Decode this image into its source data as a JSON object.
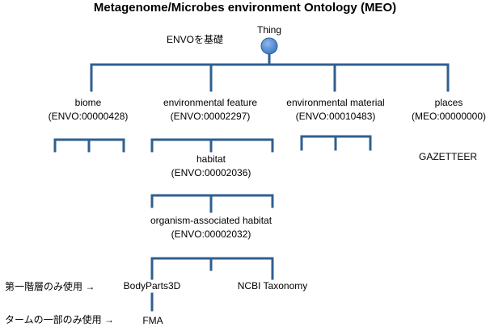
{
  "title": "Metagenome/Microbes environment Ontology (MEO)",
  "envo_note": "ENVOを基礎",
  "root": {
    "label": "Thing"
  },
  "nodes": {
    "biome": {
      "name": "biome",
      "id": "(ENVO:00000428)"
    },
    "environmental_feature": {
      "name": "environmental feature",
      "id": "(ENVO:00002297)"
    },
    "environmental_material": {
      "name": "environmental material",
      "id": "(ENVO:00010483)"
    },
    "places": {
      "name": "places",
      "id": "(MEO:00000000)"
    },
    "gazetteer": {
      "name": "GAZETTEER"
    },
    "habitat": {
      "name": "habitat",
      "id": "(ENVO:00002036)"
    },
    "organism_associated_habitat": {
      "name": "organism-associated habitat",
      "id": "(ENVO:00002032)"
    },
    "bodyparts3d": {
      "name": "BodyParts3D"
    },
    "ncbi_taxonomy": {
      "name": "NCBI Taxonomy"
    },
    "fma": {
      "name": "FMA"
    }
  },
  "notes": {
    "first_level_only": "第一階層のみ使用 →",
    "partial_terms_only": "タームの一部のみ使用 →"
  },
  "colors": {
    "line": "#2f5f91",
    "root_fill": "#4f87d3",
    "root_stroke": "#2f5f91"
  }
}
